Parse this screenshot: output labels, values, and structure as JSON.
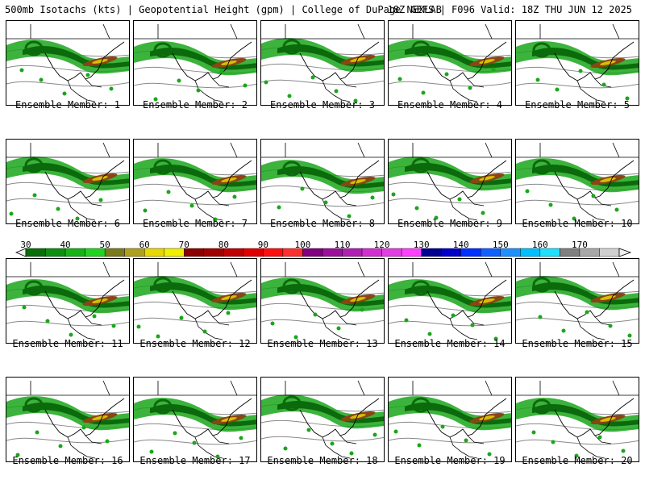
{
  "header": {
    "left": "500mb Isotachs (kts) | Geopotential Height (gpm) | College of DuPage NEXLAB",
    "right": "18Z GEFS | F096 Valid: 18Z THU JUN 12 2025"
  },
  "panels": [
    {
      "label": "Ensemble Member: 1"
    },
    {
      "label": "Ensemble Member: 2"
    },
    {
      "label": "Ensemble Member: 3"
    },
    {
      "label": "Ensemble Member: 4"
    },
    {
      "label": "Ensemble Member: 5"
    },
    {
      "label": "Ensemble Member: 6"
    },
    {
      "label": "Ensemble Member: 7"
    },
    {
      "label": "Ensemble Member: 8"
    },
    {
      "label": "Ensemble Member: 9"
    },
    {
      "label": "Ensemble Member: 10"
    },
    {
      "label": "Ensemble Member: 11"
    },
    {
      "label": "Ensemble Member: 12"
    },
    {
      "label": "Ensemble Member: 13"
    },
    {
      "label": "Ensemble Member: 14"
    },
    {
      "label": "Ensemble Member: 15"
    },
    {
      "label": "Ensemble Member: 16"
    },
    {
      "label": "Ensemble Member: 17"
    },
    {
      "label": "Ensemble Member: 18"
    },
    {
      "label": "Ensemble Member: 19"
    },
    {
      "label": "Ensemble Member: 20"
    }
  ],
  "colorbar": {
    "labels": [
      "30",
      "40",
      "50",
      "60",
      "70",
      "80",
      "90",
      "100",
      "110",
      "120",
      "130",
      "140",
      "150",
      "160",
      "170"
    ],
    "colors": [
      "#0a6e0a",
      "#0f8f0f",
      "#16b316",
      "#22d422",
      "#7a7a1e",
      "#b0a020",
      "#e6d800",
      "#f0f000",
      "#8b0000",
      "#a00000",
      "#c00000",
      "#e00000",
      "#ff1010",
      "#ff3030",
      "#800080",
      "#9a109a",
      "#b020b0",
      "#d030d0",
      "#e040e0",
      "#ff40ff",
      "#000090",
      "#0000c8",
      "#0030ff",
      "#1060ff",
      "#2090ff",
      "#00c0ff",
      "#20e0ff",
      "#808080",
      "#a8a8a8",
      "#d0d0d0"
    ]
  }
}
